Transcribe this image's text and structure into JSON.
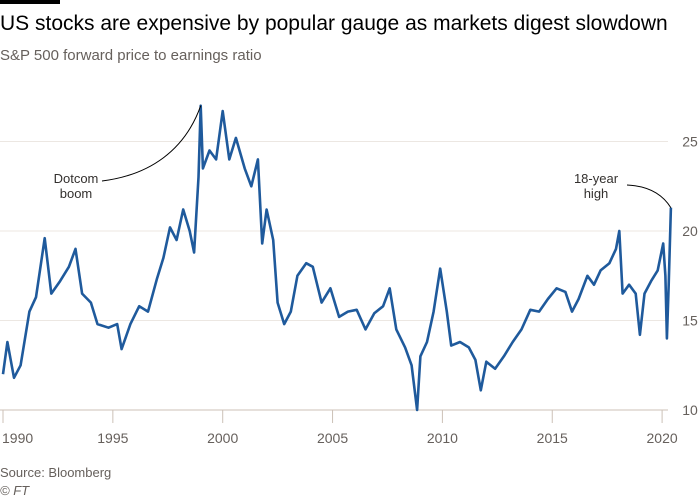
{
  "chart_data": {
    "type": "line",
    "title": "US stocks are expensive by popular gauge as markets digest slowdown",
    "subtitle": "S&P 500 forward price to earnings ratio",
    "xlabel": "",
    "ylabel": "",
    "xlim": [
      1989.9,
      2020.8
    ],
    "ylim": [
      10,
      27
    ],
    "x_ticks": [
      1990,
      1995,
      2000,
      2005,
      2010,
      2015,
      2020
    ],
    "y_ticks": [
      10,
      15,
      20,
      25
    ],
    "grid": true,
    "series": [
      {
        "name": "S&P 500 forward P/E",
        "color": "#1f5a9c",
        "points": [
          [
            1990.0,
            12
          ],
          [
            1990.2,
            13.8
          ],
          [
            1990.5,
            11.8
          ],
          [
            1990.8,
            12.5
          ],
          [
            1991.2,
            15.5
          ],
          [
            1991.5,
            16.3
          ],
          [
            1991.9,
            19.6
          ],
          [
            1992.2,
            16.5
          ],
          [
            1992.6,
            17.2
          ],
          [
            1993.0,
            18
          ],
          [
            1993.3,
            19
          ],
          [
            1993.6,
            16.5
          ],
          [
            1994.0,
            16
          ],
          [
            1994.3,
            14.8
          ],
          [
            1994.8,
            14.6
          ],
          [
            1995.2,
            14.8
          ],
          [
            1995.4,
            13.4
          ],
          [
            1995.8,
            14.8
          ],
          [
            1996.2,
            15.8
          ],
          [
            1996.6,
            15.5
          ],
          [
            1997.0,
            17.3
          ],
          [
            1997.3,
            18.5
          ],
          [
            1997.6,
            20.2
          ],
          [
            1997.9,
            19.5
          ],
          [
            1998.2,
            21.2
          ],
          [
            1998.5,
            20
          ],
          [
            1998.7,
            18.8
          ],
          [
            1998.9,
            23
          ],
          [
            1999.0,
            27
          ],
          [
            1999.1,
            23.5
          ],
          [
            1999.4,
            24.5
          ],
          [
            1999.7,
            24
          ],
          [
            2000.0,
            26.7
          ],
          [
            2000.3,
            24
          ],
          [
            2000.6,
            25.2
          ],
          [
            2001.0,
            23.5
          ],
          [
            2001.3,
            22.5
          ],
          [
            2001.6,
            24
          ],
          [
            2001.8,
            19.3
          ],
          [
            2002.0,
            21.2
          ],
          [
            2002.3,
            19.5
          ],
          [
            2002.5,
            16
          ],
          [
            2002.8,
            14.8
          ],
          [
            2003.1,
            15.5
          ],
          [
            2003.4,
            17.5
          ],
          [
            2003.8,
            18.2
          ],
          [
            2004.1,
            18
          ],
          [
            2004.5,
            16
          ],
          [
            2004.9,
            16.8
          ],
          [
            2005.3,
            15.2
          ],
          [
            2005.7,
            15.5
          ],
          [
            2006.1,
            15.6
          ],
          [
            2006.5,
            14.5
          ],
          [
            2006.9,
            15.4
          ],
          [
            2007.3,
            15.8
          ],
          [
            2007.6,
            16.8
          ],
          [
            2007.9,
            14.5
          ],
          [
            2008.3,
            13.5
          ],
          [
            2008.6,
            12.5
          ],
          [
            2008.85,
            10
          ],
          [
            2009.0,
            13
          ],
          [
            2009.3,
            13.8
          ],
          [
            2009.6,
            15.5
          ],
          [
            2009.9,
            17.9
          ],
          [
            2010.2,
            15.5
          ],
          [
            2010.4,
            13.6
          ],
          [
            2010.8,
            13.8
          ],
          [
            2011.2,
            13.5
          ],
          [
            2011.5,
            12.8
          ],
          [
            2011.75,
            11.1
          ],
          [
            2012.0,
            12.7
          ],
          [
            2012.4,
            12.3
          ],
          [
            2012.8,
            13
          ],
          [
            2013.2,
            13.8
          ],
          [
            2013.6,
            14.5
          ],
          [
            2014.0,
            15.6
          ],
          [
            2014.4,
            15.5
          ],
          [
            2014.8,
            16.2
          ],
          [
            2015.2,
            16.8
          ],
          [
            2015.6,
            16.6
          ],
          [
            2015.9,
            15.5
          ],
          [
            2016.2,
            16.2
          ],
          [
            2016.6,
            17.5
          ],
          [
            2016.9,
            17
          ],
          [
            2017.2,
            17.8
          ],
          [
            2017.6,
            18.2
          ],
          [
            2017.9,
            19
          ],
          [
            2018.05,
            20
          ],
          [
            2018.2,
            16.5
          ],
          [
            2018.5,
            17
          ],
          [
            2018.8,
            16.5
          ],
          [
            2018.99,
            14.2
          ],
          [
            2019.2,
            16.5
          ],
          [
            2019.5,
            17.2
          ],
          [
            2019.8,
            17.8
          ],
          [
            2020.05,
            19.3
          ],
          [
            2020.15,
            17.5
          ],
          [
            2020.22,
            14
          ],
          [
            2020.3,
            17
          ],
          [
            2020.4,
            21.3
          ]
        ]
      }
    ],
    "annotations": [
      {
        "text_line1": "Dotcom",
        "text_line2": "boom",
        "x": 1999.0,
        "y": 27
      },
      {
        "text_line1": "18-year",
        "text_line2": "high",
        "x": 2020.4,
        "y": 21.3
      }
    ]
  },
  "source": "Source: Bloomberg",
  "copyright": "© FT"
}
